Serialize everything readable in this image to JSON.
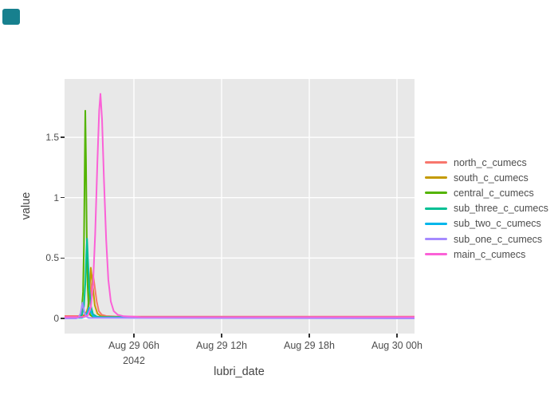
{
  "page": {
    "background": "#ffffff"
  },
  "corner_button": {
    "color": "#17808e"
  },
  "text_colors": {
    "tick": "#4d4d4d",
    "axis_title": "#444444",
    "legend": "#4d4d4d"
  },
  "chart_data": {
    "type": "line",
    "title": "",
    "xlabel": "lubri_date",
    "ylabel": "value",
    "panel_bg": "#e8e8e8",
    "grid": true,
    "grid_color": "#ffffff",
    "legend_position": "right",
    "x_unit": "hours after Aug 29 2042 00:00",
    "x_range": [
      1.25,
      25.2
    ],
    "y_range": [
      -0.14,
      1.97
    ],
    "x_ticks": [
      {
        "h": 6,
        "label": "Aug 29 06h",
        "sub": "2042"
      },
      {
        "h": 12,
        "label": "Aug 29 12h",
        "sub": ""
      },
      {
        "h": 18,
        "label": "Aug 29 18h",
        "sub": ""
      },
      {
        "h": 24,
        "label": "Aug 30 00h",
        "sub": ""
      }
    ],
    "y_ticks": [
      {
        "v": 0,
        "label": "0"
      },
      {
        "v": 0.5,
        "label": "0.5"
      },
      {
        "v": 1,
        "label": "1"
      },
      {
        "v": 1.5,
        "label": "1.5"
      }
    ],
    "series": [
      {
        "name": "north_c_cumecs",
        "color": "#F8766D",
        "peak": {
          "h": 3.2,
          "v": 0.36
        },
        "points": [
          [
            1.25,
            0.02
          ],
          [
            2.3,
            0.02
          ],
          [
            2.6,
            0.03
          ],
          [
            2.85,
            0.07
          ],
          [
            3.0,
            0.16
          ],
          [
            3.1,
            0.27
          ],
          [
            3.2,
            0.36
          ],
          [
            3.3,
            0.28
          ],
          [
            3.45,
            0.14
          ],
          [
            3.6,
            0.06
          ],
          [
            3.8,
            0.03
          ],
          [
            4.1,
            0.02
          ],
          [
            5.0,
            0.015
          ],
          [
            25.2,
            0.015
          ]
        ]
      },
      {
        "name": "south_c_cumecs",
        "color": "#C49A00",
        "peak": {
          "h": 3.05,
          "v": 0.42
        },
        "points": [
          [
            1.25,
            0.012
          ],
          [
            2.45,
            0.012
          ],
          [
            2.7,
            0.03
          ],
          [
            2.85,
            0.09
          ],
          [
            2.95,
            0.2
          ],
          [
            3.05,
            0.42
          ],
          [
            3.18,
            0.27
          ],
          [
            3.32,
            0.11
          ],
          [
            3.5,
            0.04
          ],
          [
            3.75,
            0.018
          ],
          [
            4.2,
            0.012
          ],
          [
            25.2,
            0.012
          ]
        ]
      },
      {
        "name": "central_c_cumecs",
        "color": "#53B400",
        "peak": {
          "h": 2.67,
          "v": 1.72
        },
        "points": [
          [
            1.25,
            0.01
          ],
          [
            2.1,
            0.01
          ],
          [
            2.3,
            0.02
          ],
          [
            2.42,
            0.06
          ],
          [
            2.52,
            0.22
          ],
          [
            2.58,
            0.6
          ],
          [
            2.63,
            1.2
          ],
          [
            2.67,
            1.72
          ],
          [
            2.72,
            1.3
          ],
          [
            2.77,
            0.7
          ],
          [
            2.83,
            0.28
          ],
          [
            2.9,
            0.09
          ],
          [
            3.0,
            0.03
          ],
          [
            3.2,
            0.012
          ],
          [
            25.2,
            0.01
          ]
        ]
      },
      {
        "name": "sub_three_c_cumecs",
        "color": "#00C094",
        "peak": {
          "h": 2.79,
          "v": 0.66
        },
        "points": [
          [
            1.25,
            0.01
          ],
          [
            2.25,
            0.01
          ],
          [
            2.45,
            0.03
          ],
          [
            2.58,
            0.1
          ],
          [
            2.68,
            0.3
          ],
          [
            2.74,
            0.52
          ],
          [
            2.79,
            0.66
          ],
          [
            2.86,
            0.48
          ],
          [
            2.95,
            0.24
          ],
          [
            3.06,
            0.1
          ],
          [
            3.2,
            0.035
          ],
          [
            3.45,
            0.015
          ],
          [
            3.8,
            0.01
          ],
          [
            25.2,
            0.01
          ]
        ]
      },
      {
        "name": "sub_two_c_cumecs",
        "color": "#00B6EB",
        "peak": {
          "h": 2.93,
          "v": 0.09
        },
        "points": [
          [
            1.25,
            0.005
          ],
          [
            2.45,
            0.005
          ],
          [
            2.65,
            0.015
          ],
          [
            2.8,
            0.045
          ],
          [
            2.93,
            0.09
          ],
          [
            3.05,
            0.055
          ],
          [
            3.2,
            0.02
          ],
          [
            3.45,
            0.008
          ],
          [
            25.2,
            0.005
          ]
        ]
      },
      {
        "name": "sub_one_c_cumecs",
        "color": "#A58AFF",
        "peak": {
          "h": 2.48,
          "v": 0.13
        },
        "points": [
          [
            1.25,
            0.0
          ],
          [
            2.05,
            0.0
          ],
          [
            2.2,
            0.008
          ],
          [
            2.35,
            0.04
          ],
          [
            2.48,
            0.13
          ],
          [
            2.6,
            0.055
          ],
          [
            2.72,
            0.018
          ],
          [
            2.9,
            0.004
          ],
          [
            25.2,
            0.0
          ]
        ]
      },
      {
        "name": "main_c_cumecs",
        "color": "#FB61D7",
        "peak": {
          "h": 3.71,
          "v": 1.86
        },
        "points": [
          [
            1.25,
            0.012
          ],
          [
            2.55,
            0.012
          ],
          [
            2.85,
            0.025
          ],
          [
            3.05,
            0.09
          ],
          [
            3.2,
            0.28
          ],
          [
            3.35,
            0.7
          ],
          [
            3.5,
            1.3
          ],
          [
            3.62,
            1.72
          ],
          [
            3.71,
            1.86
          ],
          [
            3.82,
            1.65
          ],
          [
            3.95,
            1.15
          ],
          [
            4.1,
            0.65
          ],
          [
            4.25,
            0.32
          ],
          [
            4.42,
            0.14
          ],
          [
            4.62,
            0.06
          ],
          [
            4.9,
            0.03
          ],
          [
            5.3,
            0.018
          ],
          [
            6.5,
            0.012
          ],
          [
            25.2,
            0.012
          ]
        ]
      }
    ]
  }
}
